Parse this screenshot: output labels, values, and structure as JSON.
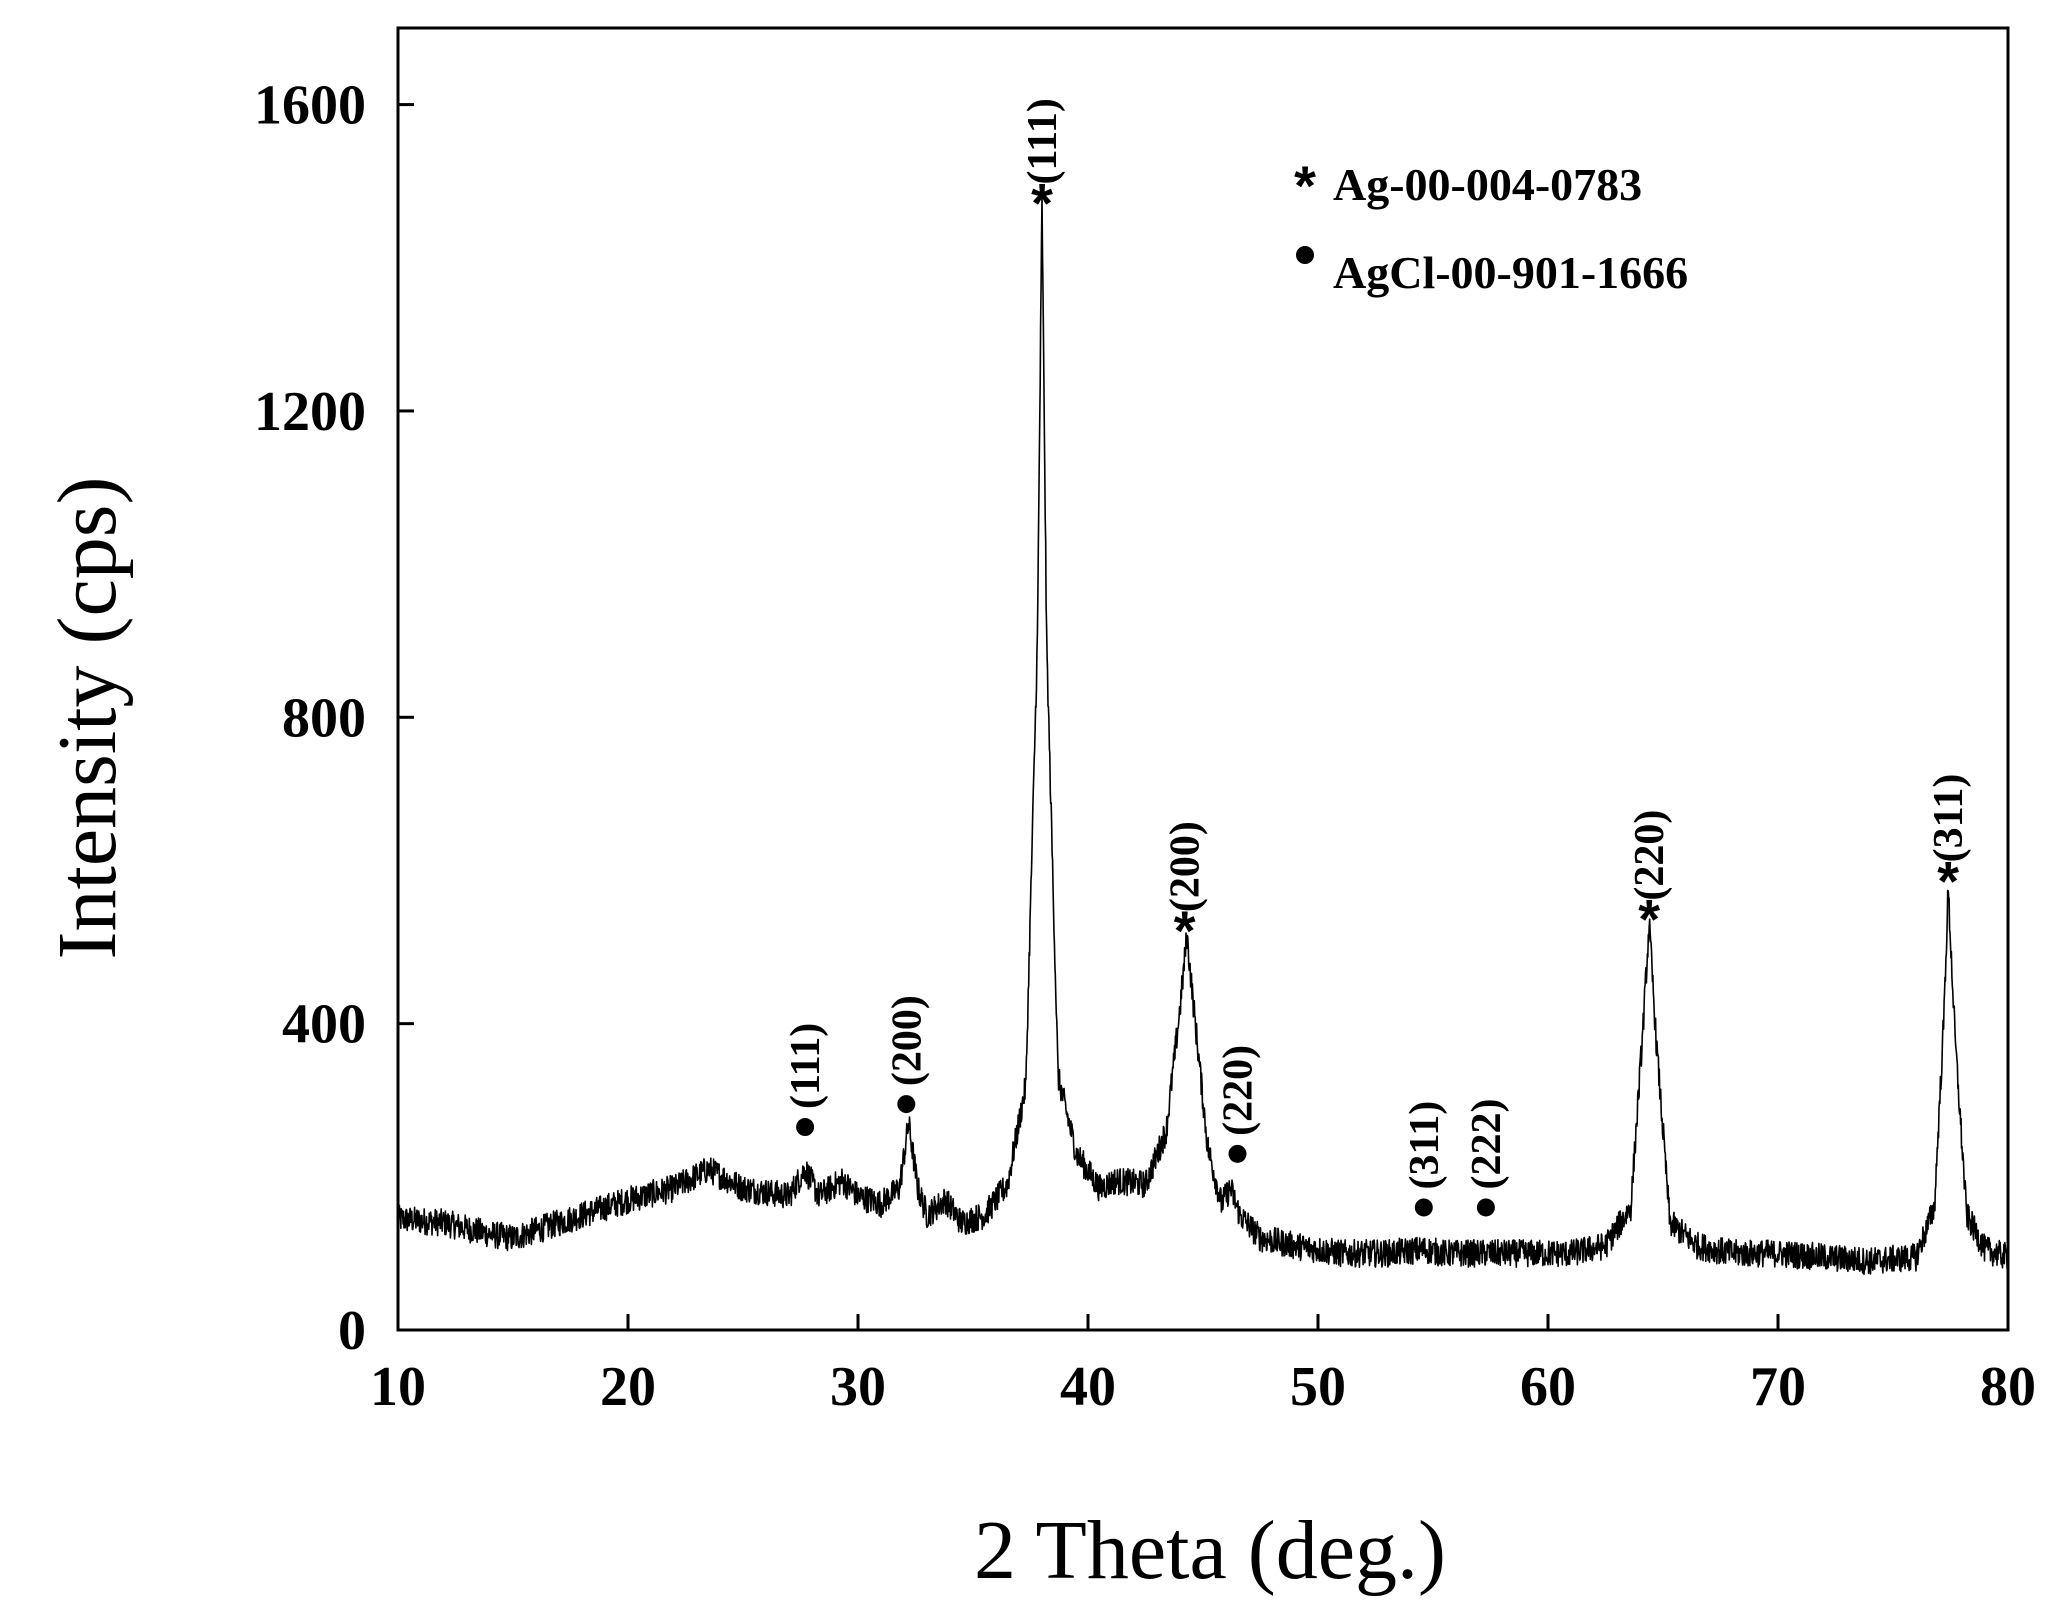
{
  "chart_data": {
    "type": "line",
    "xlabel": "2 Theta (deg.)",
    "ylabel": "Intensity (cps)",
    "xlim": [
      10,
      80
    ],
    "ylim": [
      0,
      1700
    ],
    "xticks": [
      10,
      20,
      30,
      40,
      50,
      60,
      70,
      80
    ],
    "yticks": [
      0,
      400,
      800,
      1200,
      1600
    ],
    "grid": false,
    "legend": {
      "placement": "top-right",
      "entries": [
        {
          "marker": "star",
          "label": "Ag-00-004-0783"
        },
        {
          "marker": "dot",
          "label": "AgCl-00-901-1666"
        }
      ]
    },
    "series": [
      {
        "x": [
          10,
          12,
          14,
          15,
          16,
          18,
          20,
          22,
          23.5,
          25,
          27,
          27.7,
          28.3,
          29.3,
          30,
          31,
          31.8,
          32.2,
          32.6,
          33,
          33.8,
          34.5,
          35.5,
          36.5,
          37.3,
          37.8,
          38.0,
          38.2,
          38.7,
          39.5,
          40.5,
          41.2,
          42.5,
          43.4,
          44.0,
          44.3,
          44.6,
          45.2,
          45.8,
          46.2,
          46.6,
          47.5,
          49,
          51,
          53,
          54.6,
          55.5,
          57.3,
          59,
          61,
          62.5,
          63.6,
          64.1,
          64.4,
          64.7,
          65.3,
          66.5,
          68,
          70,
          72,
          74,
          76,
          76.8,
          77.2,
          77.4,
          77.7,
          78.2,
          79,
          80
        ],
        "y": [
          145,
          140,
          125,
          120,
          130,
          150,
          170,
          185,
          210,
          185,
          175,
          210,
          175,
          195,
          175,
          165,
          185,
          270,
          185,
          150,
          170,
          140,
          150,
          190,
          320,
          900,
          1470,
          900,
          330,
          230,
          185,
          195,
          190,
          260,
          420,
          515,
          420,
          240,
          165,
          185,
          150,
          120,
          110,
          100,
          100,
          105,
          100,
          100,
          100,
          100,
          110,
          160,
          380,
          530,
          380,
          140,
          110,
          100,
          100,
          95,
          90,
          95,
          160,
          400,
          575,
          380,
          150,
          105,
          95
        ]
      }
    ],
    "annotations": [
      {
        "x": 27.7,
        "y": 265,
        "marker": "dot",
        "label": "(111)"
      },
      {
        "x": 32.1,
        "y": 295,
        "marker": "dot",
        "label": "(200)"
      },
      {
        "x": 38.0,
        "y": 1480,
        "marker": "star",
        "label": "(111)"
      },
      {
        "x": 44.2,
        "y": 530,
        "marker": "star",
        "label": "(200)"
      },
      {
        "x": 46.5,
        "y": 230,
        "marker": "dot",
        "label": "(220)"
      },
      {
        "x": 54.6,
        "y": 160,
        "marker": "dot",
        "label": "(311)"
      },
      {
        "x": 57.3,
        "y": 160,
        "marker": "dot",
        "label": "(222)"
      },
      {
        "x": 64.4,
        "y": 545,
        "marker": "star",
        "label": "(220)"
      },
      {
        "x": 77.4,
        "y": 595,
        "marker": "star",
        "label": "(311)"
      }
    ]
  }
}
